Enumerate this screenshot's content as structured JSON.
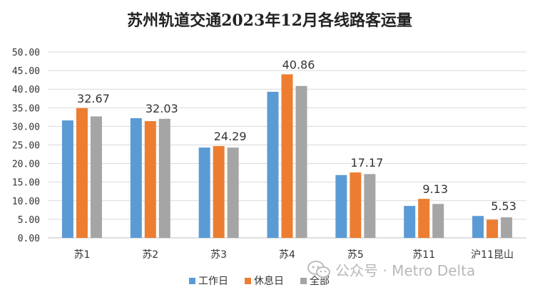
{
  "chart_data": {
    "type": "bar",
    "title": "苏州轨道交通2023年12月各线路客运量",
    "categories": [
      "苏1",
      "苏2",
      "苏3",
      "苏4",
      "苏5",
      "苏11",
      "沪11昆山"
    ],
    "series": [
      {
        "name": "工作日",
        "color": "#5b9bd5",
        "values": [
          31.6,
          32.2,
          24.3,
          39.3,
          16.9,
          8.6,
          5.9
        ]
      },
      {
        "name": "休息日",
        "color": "#ed7d31",
        "values": [
          34.9,
          31.4,
          24.7,
          44.0,
          17.6,
          10.5,
          4.9
        ]
      },
      {
        "name": "全部",
        "color": "#a5a5a5",
        "values": [
          32.67,
          32.03,
          24.29,
          40.86,
          17.17,
          9.13,
          5.53
        ]
      }
    ],
    "data_labels": [
      "32.67",
      "32.03",
      "24.29",
      "40.86",
      "17.17",
      "9.13",
      "5.53"
    ],
    "yticks": [
      "0.00",
      "5.00",
      "10.00",
      "15.00",
      "20.00",
      "25.00",
      "30.00",
      "35.00",
      "40.00",
      "45.00",
      "50.00"
    ],
    "ylim": [
      0,
      50
    ],
    "grid": true,
    "legend_position": "bottom"
  },
  "watermark": {
    "icon": "wechat-icon",
    "text": "公众号 · Metro Delta"
  }
}
